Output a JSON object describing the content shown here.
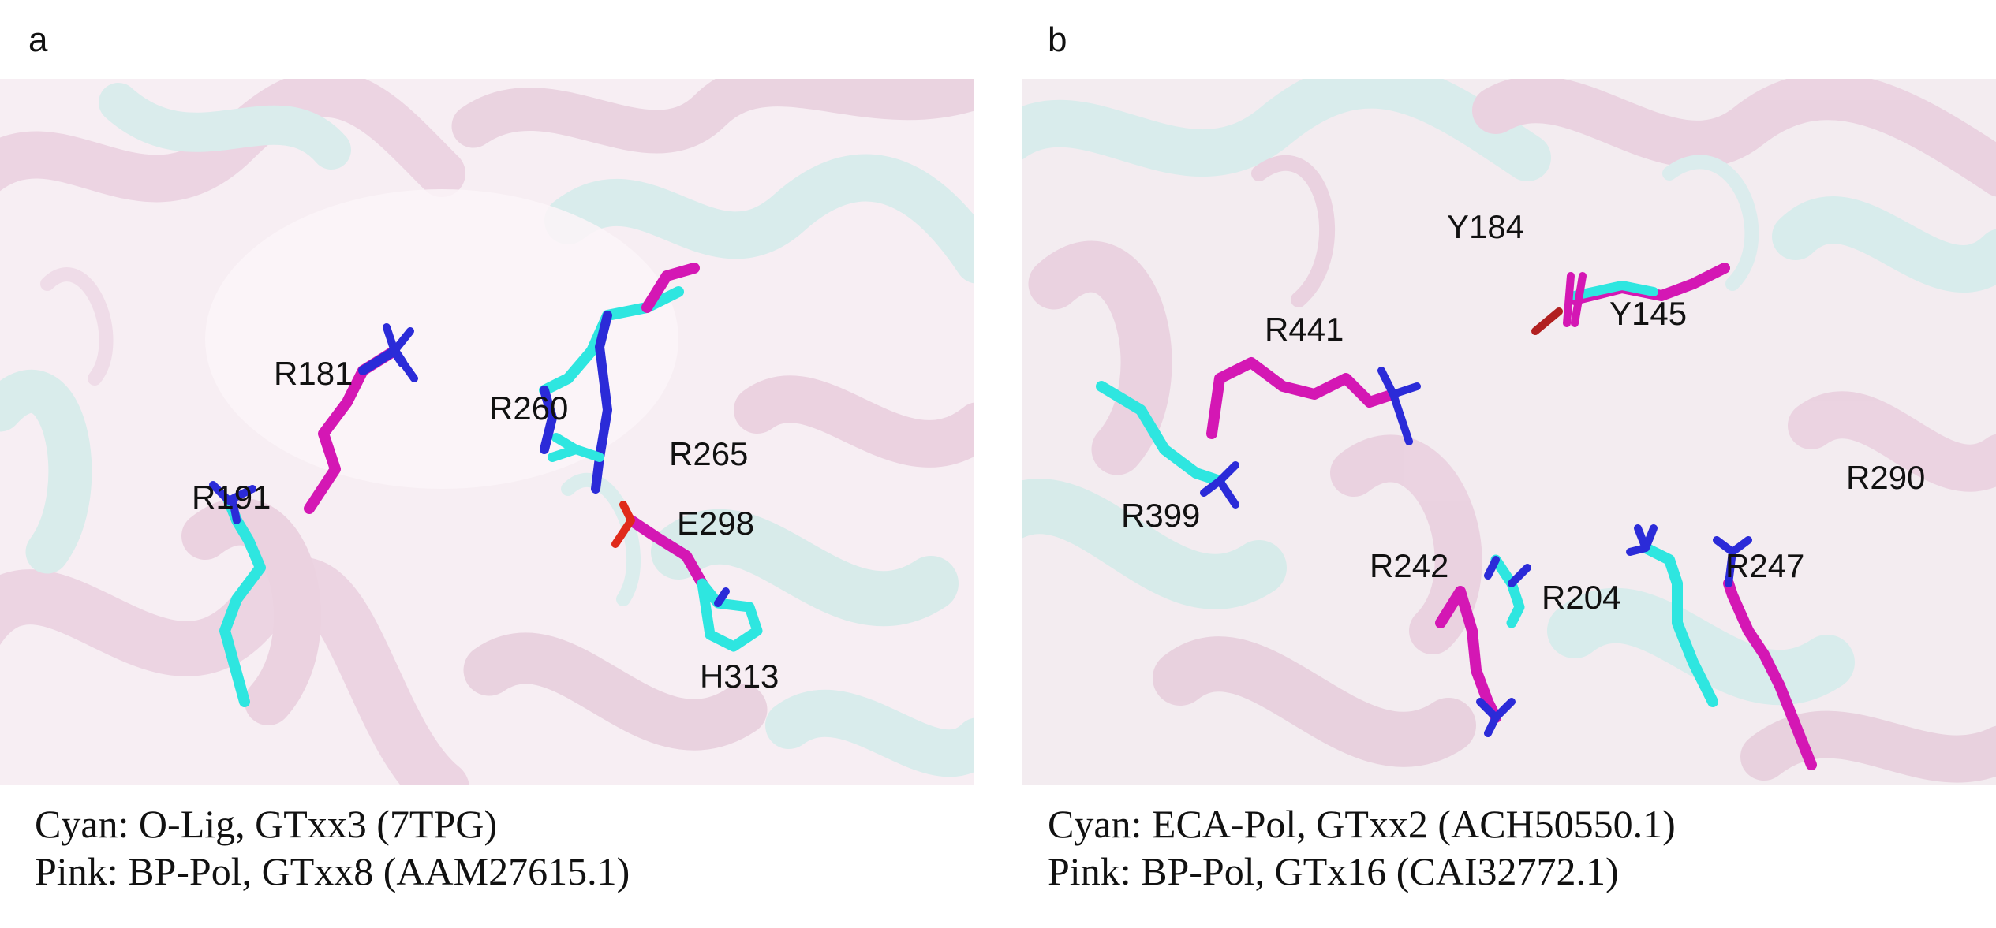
{
  "panels": [
    {
      "letter": "a",
      "residues": [
        "R181",
        "R191",
        "R260",
        "R265",
        "E298",
        "H313"
      ],
      "caption_cyan": "Cyan: O-Lig, GTxx3 (7TPG)",
      "caption_pink": "Pink: BP-Pol, GTxx8 (AAM27615.1)"
    },
    {
      "letter": "b",
      "residues": [
        "Y184",
        "Y145",
        "R441",
        "R399",
        "R242",
        "R204",
        "R247",
        "R290"
      ],
      "caption_cyan": "Cyan: ECA-Pol, GTxx2 (ACH50550.1)",
      "caption_pink": "Pink: BP-Pol, GTx16 (CAI32772.1)"
    }
  ],
  "colors": {
    "cyan_stick": "#2ee6e0",
    "magenta_stick": "#d417b4",
    "nitrogen": "#2b2bd8",
    "oxygen": "#e02a1a",
    "pink_ribbon": "#f2d3e6",
    "cyan_ribbon": "#cdeeed"
  }
}
